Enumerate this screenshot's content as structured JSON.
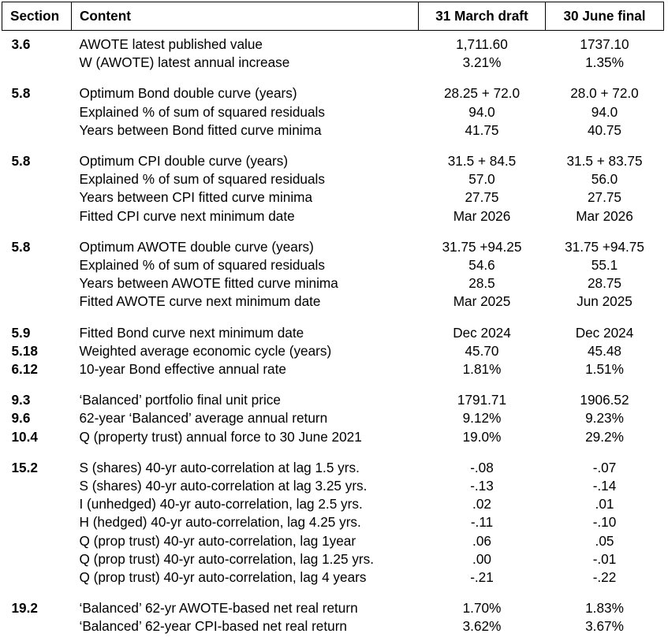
{
  "header": {
    "section": "Section",
    "content": "Content",
    "col_a": "31 March draft",
    "col_b": "30 June final"
  },
  "groups": [
    {
      "rows": [
        {
          "section": "3.6",
          "content": "AWOTE latest published value",
          "a": "1,711.60",
          "b": "1737.10"
        },
        {
          "section": "",
          "content": "W (AWOTE) latest annual increase",
          "a": "3.21%",
          "b": "1.35%"
        }
      ]
    },
    {
      "rows": [
        {
          "section": "5.8",
          "content": "Optimum Bond double curve (years)",
          "a": "28.25 + 72.0",
          "b": "28.0 + 72.0"
        },
        {
          "section": "",
          "content": "Explained % of sum of squared residuals",
          "a": "94.0",
          "b": "94.0"
        },
        {
          "section": "",
          "content": "Years between Bond fitted curve minima",
          "a": "41.75",
          "b": "40.75"
        }
      ]
    },
    {
      "rows": [
        {
          "section": "5.8",
          "content": "Optimum CPI double curve (years)",
          "a": "31.5 + 84.5",
          "b": "31.5 + 83.75"
        },
        {
          "section": "",
          "content": "Explained % of sum of squared residuals",
          "a": "57.0",
          "b": "56.0"
        },
        {
          "section": "",
          "content": "Years between CPI fitted curve minima",
          "a": "27.75",
          "b": "27.75"
        },
        {
          "section": "",
          "content": "Fitted CPI curve next minimum date",
          "a": "Mar 2026",
          "b": "Mar 2026"
        }
      ]
    },
    {
      "rows": [
        {
          "section": "5.8",
          "content": "Optimum AWOTE double curve (years)",
          "a": "31.75 +94.25",
          "b": "31.75 +94.75"
        },
        {
          "section": "",
          "content": "Explained % of sum of squared residuals",
          "a": "54.6",
          "b": "55.1"
        },
        {
          "section": "",
          "content": "Years between AWOTE fitted curve minima",
          "a": "28.5",
          "b": "28.75"
        },
        {
          "section": "",
          "content": "Fitted AWOTE curve next minimum date",
          "a": "Mar 2025",
          "b": "Jun 2025"
        }
      ]
    },
    {
      "rows": [
        {
          "section": "5.9",
          "content": "Fitted Bond curve next minimum date",
          "a": "Dec 2024",
          "b": "Dec 2024"
        },
        {
          "section": "5.18",
          "content": "Weighted average economic cycle (years)",
          "a": "45.70",
          "b": "45.48"
        },
        {
          "section": "6.12",
          "content": "10-year Bond effective annual rate",
          "a": "1.81%",
          "b": "1.51%"
        }
      ]
    },
    {
      "rows": [
        {
          "section": "9.3",
          "content": "‘Balanced’ portfolio final unit price",
          "a": "1791.71",
          "b": "1906.52"
        },
        {
          "section": "9.6",
          "content": "62-year ‘Balanced’ average annual return",
          "a": "9.12%",
          "b": "9.23%"
        },
        {
          "section": "10.4",
          "content": "Q (property trust) annual force to 30 June 2021",
          "a": "19.0%",
          "b": "29.2%"
        }
      ]
    },
    {
      "rows": [
        {
          "section": "15.2",
          "content": "S (shares) 40-yr auto-correlation at lag 1.5 yrs.",
          "a": "-.08",
          "b": "-.07"
        },
        {
          "section": "",
          "content": "S (shares) 40-yr auto-correlation at lag 3.25 yrs.",
          "a": "-.13",
          "b": "-.14"
        },
        {
          "section": "",
          "content": "I (unhedged) 40-yr auto-correlation, lag 2.5 yrs.",
          "a": ".02",
          "b": ".01"
        },
        {
          "section": "",
          "content": "H (hedged) 40-yr auto-correlation, lag 4.25 yrs.",
          "a": "-.11",
          "b": "-.10"
        },
        {
          "section": "",
          "content": "Q (prop trust) 40-yr auto-correlation, lag 1year",
          "a": ".06",
          "b": ".05"
        },
        {
          "section": "",
          "content": "Q (prop trust) 40-yr auto-correlation, lag 1.25 yrs.",
          "a": ".00",
          "b": "-.01"
        },
        {
          "section": "",
          "content": "Q (prop trust) 40-yr auto-correlation, lag 4 years",
          "a": "-.21",
          "b": "-.22"
        }
      ]
    },
    {
      "rows": [
        {
          "section": "19.2",
          "content": "‘Balanced’ 62-yr AWOTE-based net real return",
          "a": "1.70%",
          "b": "1.83%"
        },
        {
          "section": "",
          "content": "‘Balanced’ 62-year CPI-based net real return",
          "a": "3.62%",
          "b": "3.67%"
        }
      ]
    }
  ]
}
